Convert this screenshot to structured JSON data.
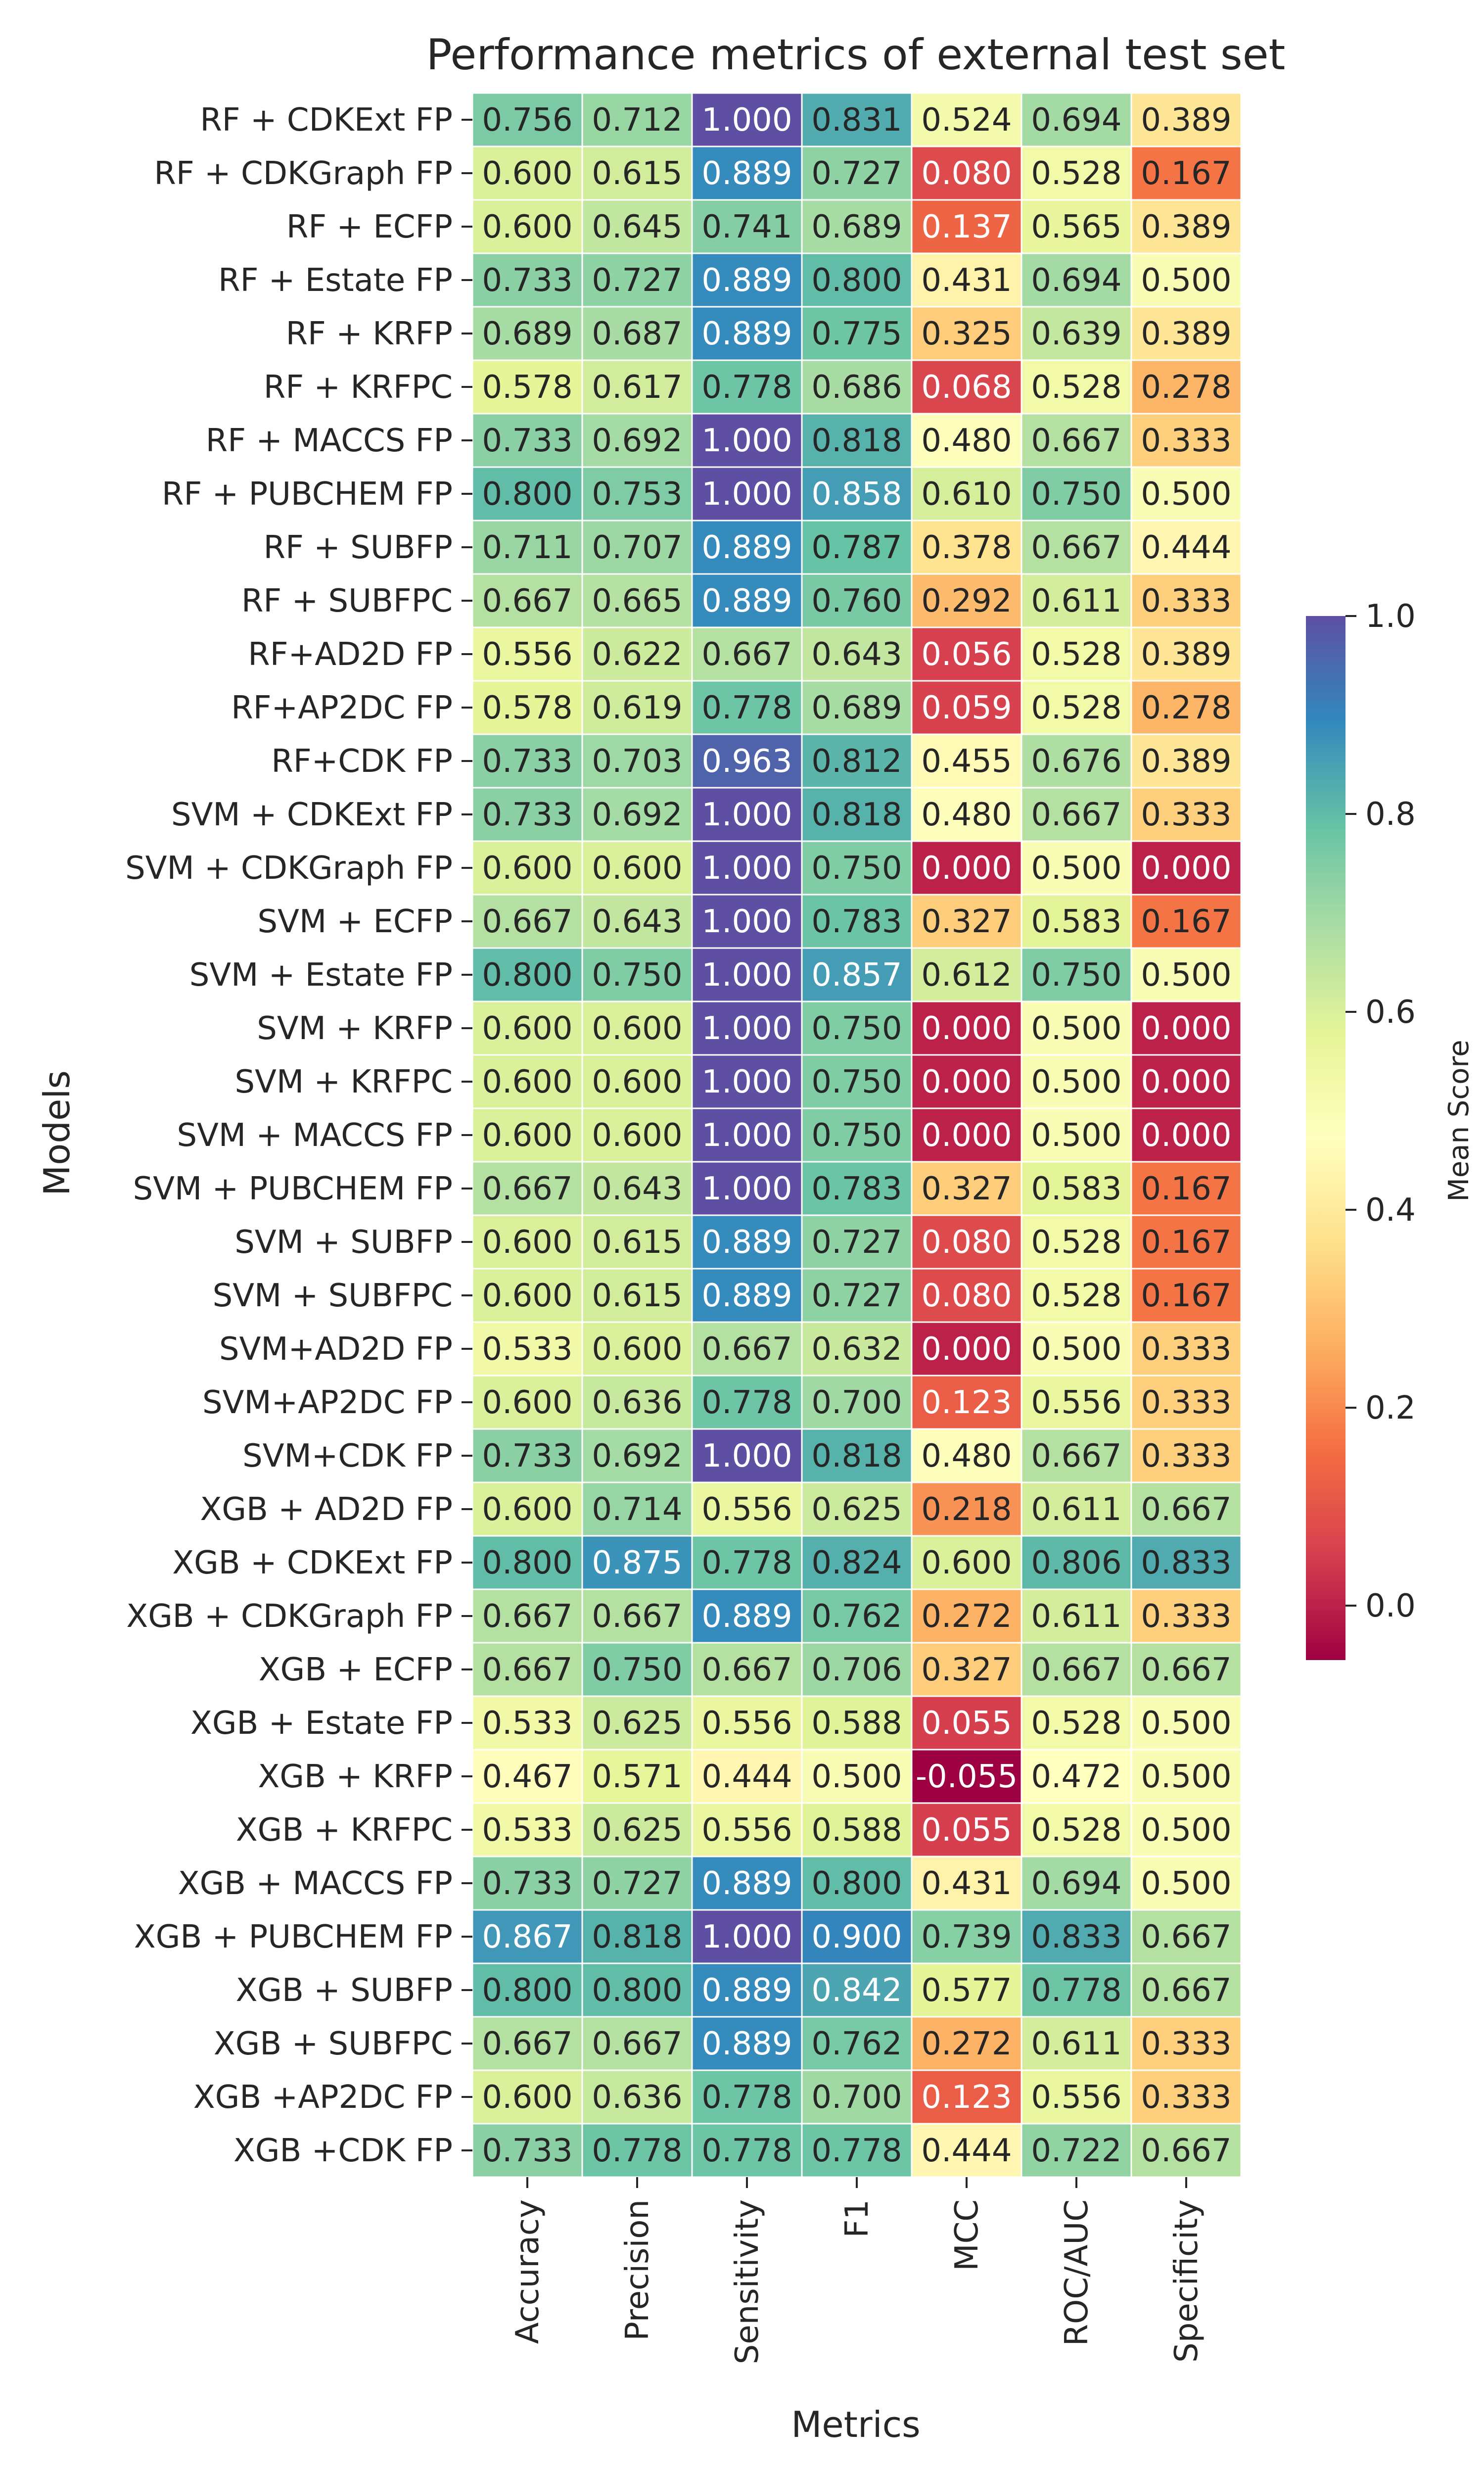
{
  "chart_data": {
    "type": "heatmap",
    "title": "Performance metrics of external test set",
    "xlabel": "Metrics",
    "ylabel": "Models",
    "colorbar_label": "Mean Score",
    "colormap": "Spectral",
    "vmin": -0.055,
    "vmax": 1.0,
    "colorbar_ticks": [
      0.0,
      0.2,
      0.4,
      0.6,
      0.8,
      1.0
    ],
    "colorbar_tick_labels": [
      "0.0",
      "0.2",
      "0.4",
      "0.6",
      "0.8",
      "1.0"
    ],
    "columns": [
      "Accuracy",
      "Precision",
      "Sensitivity",
      "F1",
      "MCC",
      "ROC/AUC",
      "Specificity"
    ],
    "rows": [
      "RF + CDKExt FP",
      "RF + CDKGraph FP",
      "RF + ECFP",
      "RF + Estate FP",
      "RF + KRFP",
      "RF + KRFPC",
      "RF + MACCS FP",
      "RF + PUBCHEM FP",
      "RF + SUBFP",
      "RF + SUBFPC",
      "RF+AD2D FP",
      "RF+AP2DC FP",
      "RF+CDK FP",
      "SVM + CDKExt FP",
      "SVM + CDKGraph FP",
      "SVM + ECFP",
      "SVM + Estate FP",
      "SVM + KRFP",
      "SVM + KRFPC",
      "SVM + MACCS FP",
      "SVM + PUBCHEM FP",
      "SVM + SUBFP",
      "SVM + SUBFPC",
      "SVM+AD2D FP",
      "SVM+AP2DC FP",
      "SVM+CDK FP",
      "XGB + AD2D FP",
      "XGB + CDKExt FP",
      "XGB + CDKGraph FP",
      "XGB + ECFP",
      "XGB + Estate FP",
      "XGB + KRFP",
      "XGB + KRFPC",
      "XGB + MACCS FP",
      "XGB + PUBCHEM FP",
      "XGB + SUBFP",
      "XGB + SUBFPC",
      "XGB +AP2DC FP",
      "XGB +CDK FP"
    ],
    "values": [
      [
        0.756,
        0.712,
        1.0,
        0.831,
        0.524,
        0.694,
        0.389
      ],
      [
        0.6,
        0.615,
        0.889,
        0.727,
        0.08,
        0.528,
        0.167
      ],
      [
        0.6,
        0.645,
        0.741,
        0.689,
        0.137,
        0.565,
        0.389
      ],
      [
        0.733,
        0.727,
        0.889,
        0.8,
        0.431,
        0.694,
        0.5
      ],
      [
        0.689,
        0.687,
        0.889,
        0.775,
        0.325,
        0.639,
        0.389
      ],
      [
        0.578,
        0.617,
        0.778,
        0.686,
        0.068,
        0.528,
        0.278
      ],
      [
        0.733,
        0.692,
        1.0,
        0.818,
        0.48,
        0.667,
        0.333
      ],
      [
        0.8,
        0.753,
        1.0,
        0.858,
        0.61,
        0.75,
        0.5
      ],
      [
        0.711,
        0.707,
        0.889,
        0.787,
        0.378,
        0.667,
        0.444
      ],
      [
        0.667,
        0.665,
        0.889,
        0.76,
        0.292,
        0.611,
        0.333
      ],
      [
        0.556,
        0.622,
        0.667,
        0.643,
        0.056,
        0.528,
        0.389
      ],
      [
        0.578,
        0.619,
        0.778,
        0.689,
        0.059,
        0.528,
        0.278
      ],
      [
        0.733,
        0.703,
        0.963,
        0.812,
        0.455,
        0.676,
        0.389
      ],
      [
        0.733,
        0.692,
        1.0,
        0.818,
        0.48,
        0.667,
        0.333
      ],
      [
        0.6,
        0.6,
        1.0,
        0.75,
        0.0,
        0.5,
        0.0
      ],
      [
        0.667,
        0.643,
        1.0,
        0.783,
        0.327,
        0.583,
        0.167
      ],
      [
        0.8,
        0.75,
        1.0,
        0.857,
        0.612,
        0.75,
        0.5
      ],
      [
        0.6,
        0.6,
        1.0,
        0.75,
        0.0,
        0.5,
        0.0
      ],
      [
        0.6,
        0.6,
        1.0,
        0.75,
        0.0,
        0.5,
        0.0
      ],
      [
        0.6,
        0.6,
        1.0,
        0.75,
        0.0,
        0.5,
        0.0
      ],
      [
        0.667,
        0.643,
        1.0,
        0.783,
        0.327,
        0.583,
        0.167
      ],
      [
        0.6,
        0.615,
        0.889,
        0.727,
        0.08,
        0.528,
        0.167
      ],
      [
        0.6,
        0.615,
        0.889,
        0.727,
        0.08,
        0.528,
        0.167
      ],
      [
        0.533,
        0.6,
        0.667,
        0.632,
        0.0,
        0.5,
        0.333
      ],
      [
        0.6,
        0.636,
        0.778,
        0.7,
        0.123,
        0.556,
        0.333
      ],
      [
        0.733,
        0.692,
        1.0,
        0.818,
        0.48,
        0.667,
        0.333
      ],
      [
        0.6,
        0.714,
        0.556,
        0.625,
        0.218,
        0.611,
        0.667
      ],
      [
        0.8,
        0.875,
        0.778,
        0.824,
        0.6,
        0.806,
        0.833
      ],
      [
        0.667,
        0.667,
        0.889,
        0.762,
        0.272,
        0.611,
        0.333
      ],
      [
        0.667,
        0.75,
        0.667,
        0.706,
        0.327,
        0.667,
        0.667
      ],
      [
        0.533,
        0.625,
        0.556,
        0.588,
        0.055,
        0.528,
        0.5
      ],
      [
        0.467,
        0.571,
        0.444,
        0.5,
        -0.055,
        0.472,
        0.5
      ],
      [
        0.533,
        0.625,
        0.556,
        0.588,
        0.055,
        0.528,
        0.5
      ],
      [
        0.733,
        0.727,
        0.889,
        0.8,
        0.431,
        0.694,
        0.5
      ],
      [
        0.867,
        0.818,
        1.0,
        0.9,
        0.739,
        0.833,
        0.667
      ],
      [
        0.8,
        0.8,
        0.889,
        0.842,
        0.577,
        0.778,
        0.667
      ],
      [
        0.667,
        0.667,
        0.889,
        0.762,
        0.272,
        0.611,
        0.333
      ],
      [
        0.6,
        0.636,
        0.778,
        0.7,
        0.123,
        0.556,
        0.333
      ],
      [
        0.733,
        0.778,
        0.778,
        0.778,
        0.444,
        0.722,
        0.667
      ]
    ],
    "value_format": "0.000",
    "cell_border_color": "#ffffff",
    "legend_placement": "right"
  }
}
